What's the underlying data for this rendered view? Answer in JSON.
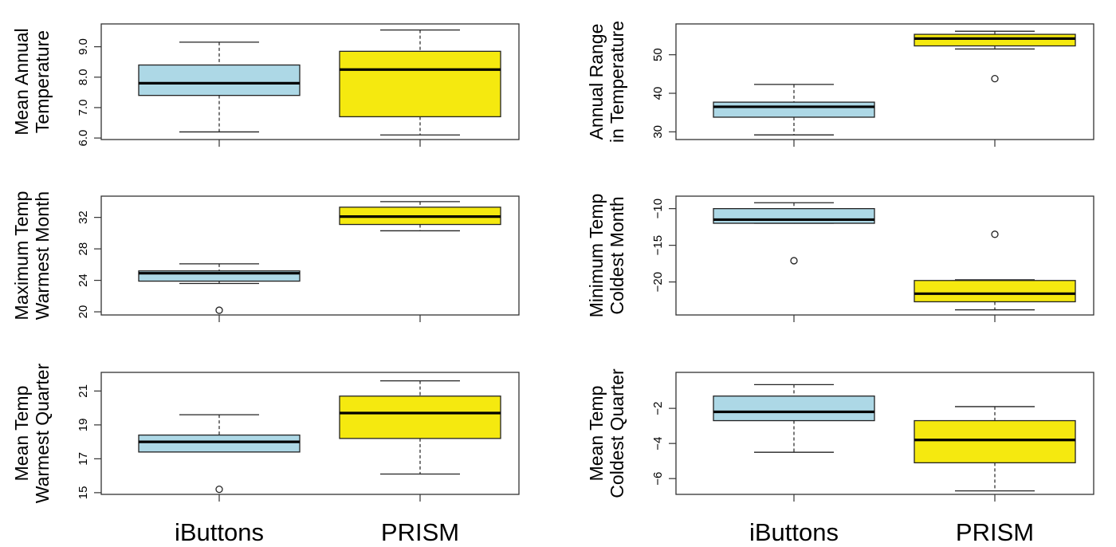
{
  "colors": {
    "iButtons": "#add8e6",
    "PRISM": "#f5e90f"
  },
  "chart_data": [
    {
      "type": "box",
      "ylabel": [
        "Mean Annual",
        "Temperature"
      ],
      "categories": [
        "iButtons",
        "PRISM"
      ],
      "yticks": [
        "6.0",
        "7.0",
        "8.0",
        "9.0"
      ],
      "ylim": [
        5.95,
        9.75
      ],
      "boxes": [
        {
          "min": 6.2,
          "q1": 7.4,
          "median": 7.8,
          "q3": 8.4,
          "max": 9.15,
          "outliers": []
        },
        {
          "min": 6.1,
          "q1": 6.7,
          "median": 8.25,
          "q3": 8.85,
          "max": 9.55,
          "outliers": []
        }
      ]
    },
    {
      "type": "box",
      "ylabel": [
        "Annual Range",
        "in Temperature"
      ],
      "categories": [
        "iButtons",
        "PRISM"
      ],
      "yticks": [
        "30",
        "40",
        "50"
      ],
      "ylim": [
        28,
        58
      ],
      "boxes": [
        {
          "min": 29.2,
          "q1": 33.8,
          "median": 36.5,
          "q3": 37.7,
          "max": 42.3,
          "outliers": []
        },
        {
          "min": 51.5,
          "q1": 52.3,
          "median": 54.2,
          "q3": 55.3,
          "max": 56.1,
          "outliers": [
            43.8
          ]
        }
      ]
    },
    {
      "type": "box",
      "ylabel": [
        "Maximum Temp",
        "Warmest Month"
      ],
      "categories": [
        "iButtons",
        "PRISM"
      ],
      "yticks": [
        "20",
        "24",
        "28",
        "32"
      ],
      "ylim": [
        19.6,
        34.7
      ],
      "boxes": [
        {
          "min": 23.6,
          "q1": 23.9,
          "median": 24.9,
          "q3": 25.2,
          "max": 26.1,
          "outliers": [
            20.2
          ]
        },
        {
          "min": 30.3,
          "q1": 31.1,
          "median": 32.1,
          "q3": 33.3,
          "max": 34.0,
          "outliers": []
        }
      ]
    },
    {
      "type": "box",
      "ylabel": [
        "Minimum Temp",
        "Coldest Month"
      ],
      "categories": [
        "iButtons",
        "PRISM"
      ],
      "yticks": [
        "-10",
        "-15",
        "-20"
      ],
      "ylim": [
        -24.5,
        -8.3
      ],
      "boxes": [
        {
          "min": -12.0,
          "q1": -12.0,
          "median": -11.5,
          "q3": -10.0,
          "max": -9.2,
          "outliers": [
            -17.1
          ]
        },
        {
          "min": -23.8,
          "q1": -22.7,
          "median": -21.6,
          "q3": -19.8,
          "max": -19.7,
          "outliers": [
            -13.5
          ]
        }
      ]
    },
    {
      "type": "box",
      "ylabel": [
        "Mean Temp",
        "Warmest Quarter"
      ],
      "categories": [
        "iButtons",
        "PRISM"
      ],
      "yticks": [
        "15",
        "17",
        "19",
        "21"
      ],
      "ylim": [
        14.9,
        22.1
      ],
      "boxes": [
        {
          "min": 17.4,
          "q1": 17.4,
          "median": 18.0,
          "q3": 18.4,
          "max": 19.6,
          "outliers": [
            15.2
          ]
        },
        {
          "min": 16.1,
          "q1": 18.2,
          "median": 19.7,
          "q3": 20.7,
          "max": 21.6,
          "outliers": []
        }
      ]
    },
    {
      "type": "box",
      "ylabel": [
        "Mean Temp",
        "Coldest Quarter"
      ],
      "categories": [
        "iButtons",
        "PRISM"
      ],
      "yticks": [
        "-2",
        "-4",
        "-6"
      ],
      "ylim": [
        -6.9,
        0.05
      ],
      "boxes": [
        {
          "min": -4.5,
          "q1": -2.7,
          "median": -2.2,
          "q3": -1.3,
          "max": -0.65,
          "outliers": []
        },
        {
          "min": -6.7,
          "q1": -5.1,
          "median": -3.8,
          "q3": -2.7,
          "max": -1.9,
          "outliers": []
        }
      ]
    }
  ],
  "bottom_labels": {
    "left": [
      "iButtons",
      "PRISM"
    ],
    "right": [
      "iButtons",
      "PRISM"
    ]
  }
}
